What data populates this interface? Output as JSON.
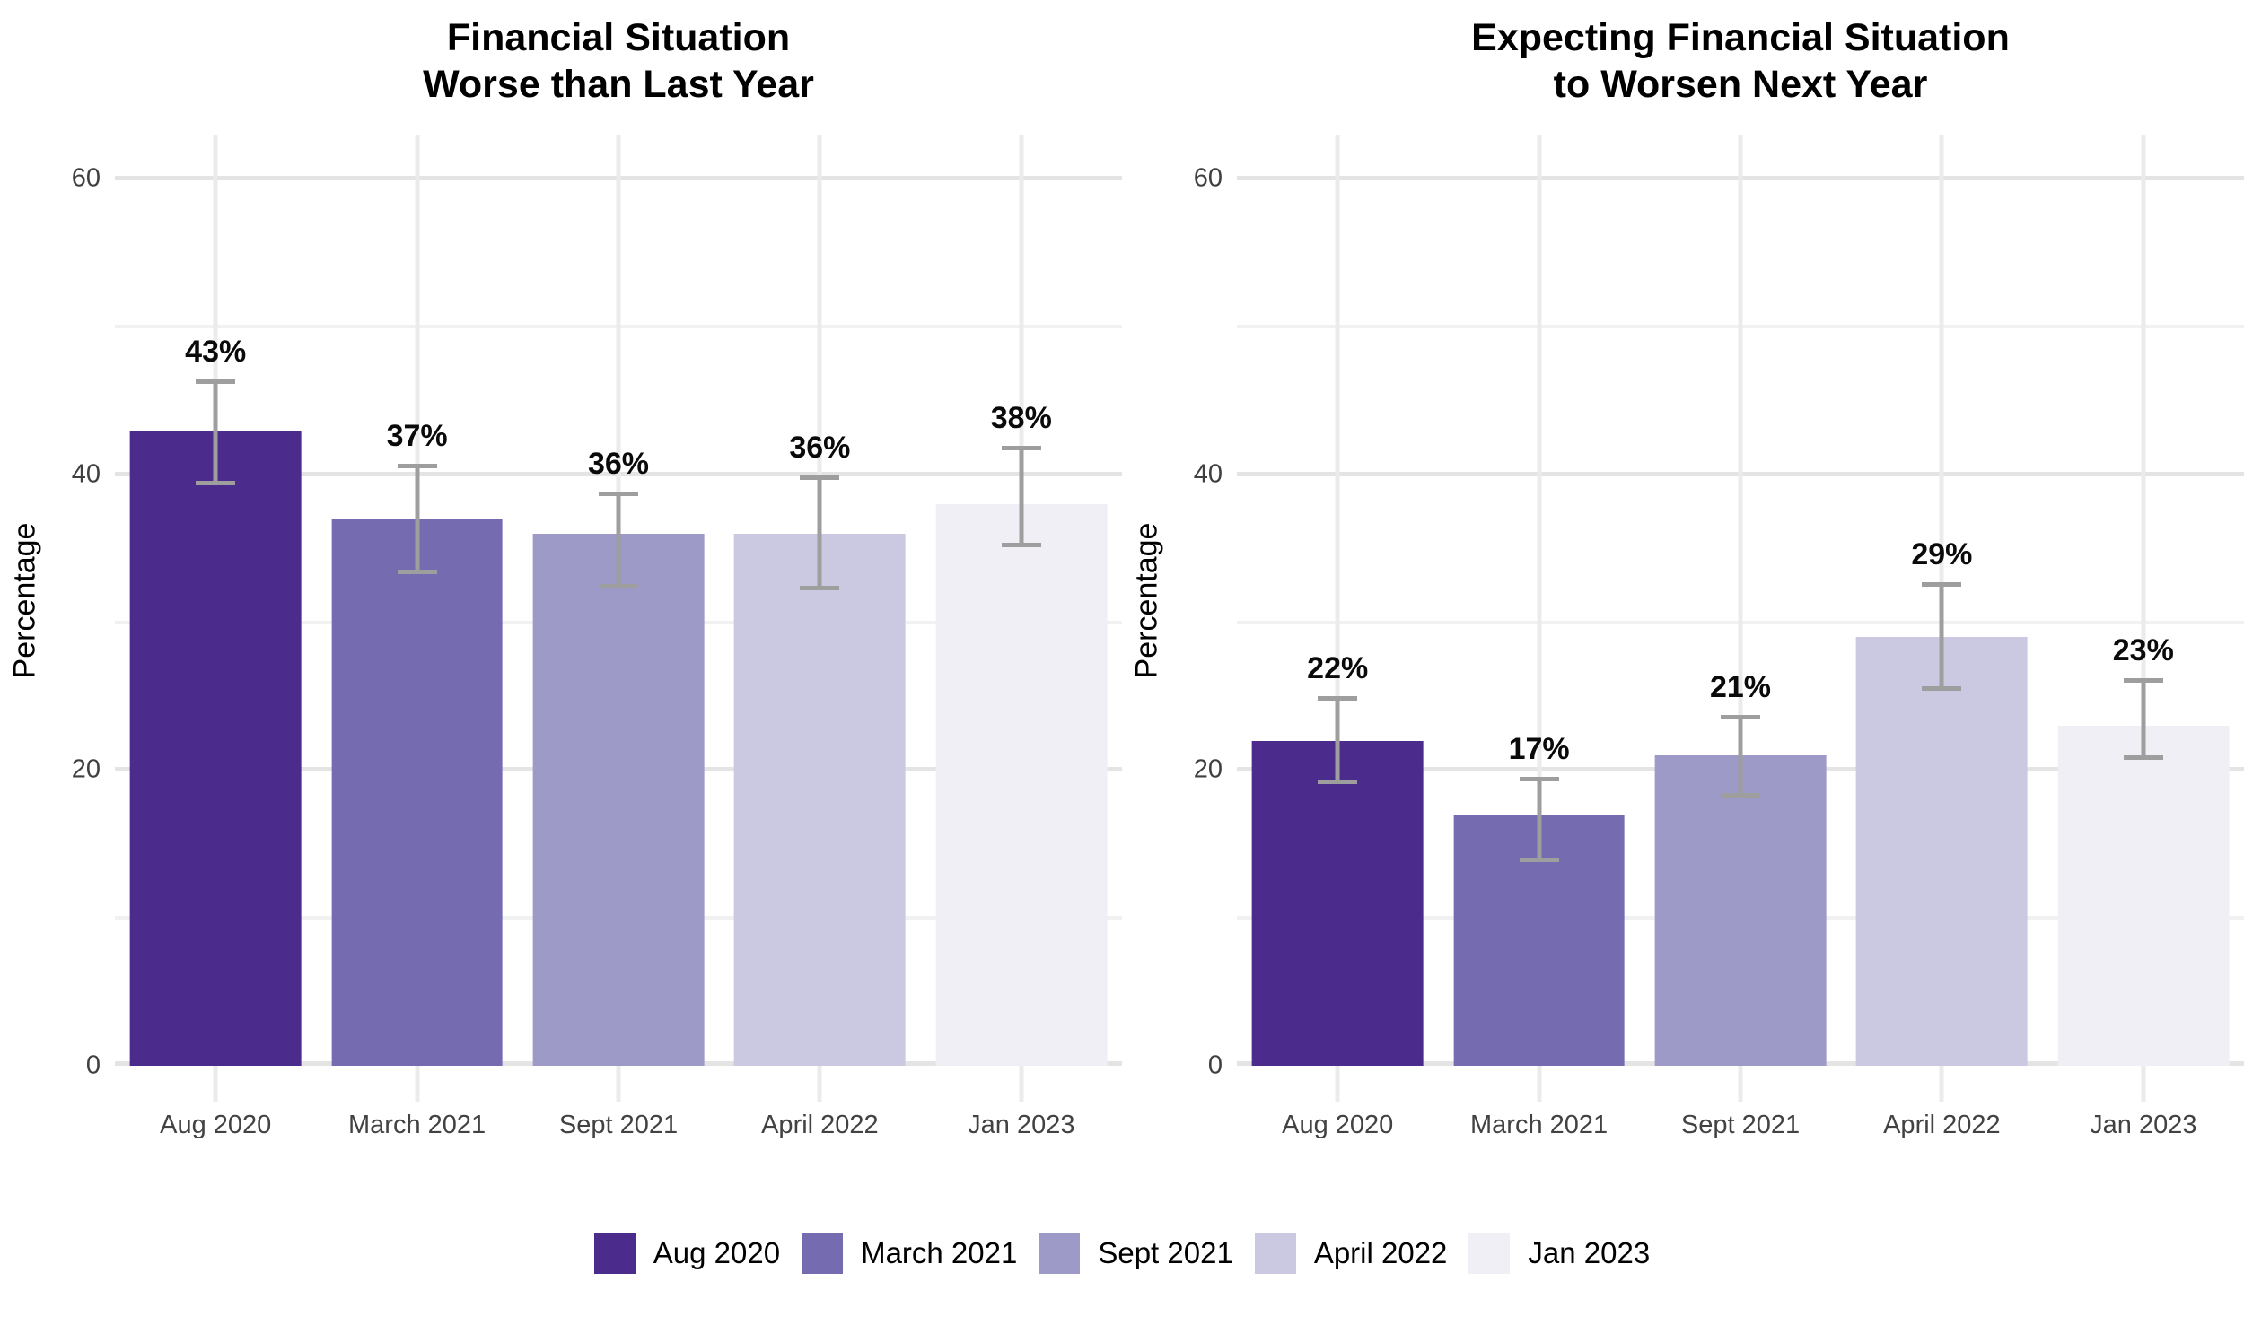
{
  "chart_data": [
    {
      "type": "bar",
      "title_lines": [
        "Financial Situation",
        "Worse than Last Year"
      ],
      "ylabel": "Percentage",
      "categories": [
        "Aug 2020",
        "March 2021",
        "Sept 2021",
        "April 2022",
        "Jan 2023"
      ],
      "values": [
        43,
        37,
        36,
        36,
        38
      ],
      "value_labels": [
        "43%",
        "37%",
        "36%",
        "36%",
        "38%"
      ],
      "error_low": [
        39.4,
        33.4,
        32.4,
        32.3,
        35.2
      ],
      "error_high": [
        46.3,
        40.6,
        38.7,
        39.8,
        41.8
      ],
      "bar_colors": [
        "#4B2C8C",
        "#756BB1",
        "#9E9AC8",
        "#CBC9E2",
        "#F0EFF6"
      ],
      "ylim": [
        0,
        63
      ],
      "yticks": [
        0,
        20,
        40,
        60
      ],
      "yticks_minor": [
        10,
        30,
        50
      ],
      "grid": true,
      "legend_position": "bottom-shared"
    },
    {
      "type": "bar",
      "title_lines": [
        "Expecting Financial Situation",
        "to Worsen Next Year"
      ],
      "ylabel": "Percentage",
      "categories": [
        "Aug 2020",
        "March 2021",
        "Sept 2021",
        "April 2022",
        "Jan 2023"
      ],
      "values": [
        22,
        17,
        21,
        29,
        23
      ],
      "value_labels": [
        "22%",
        "17%",
        "21%",
        "29%",
        "23%"
      ],
      "error_low": [
        19.2,
        13.9,
        18.3,
        25.5,
        20.8
      ],
      "error_high": [
        24.9,
        19.4,
        23.6,
        32.6,
        26.1
      ],
      "bar_colors": [
        "#4B2C8C",
        "#756BB1",
        "#9E9AC8",
        "#CBC9E2",
        "#F0EFF6"
      ],
      "ylim": [
        0,
        63
      ],
      "yticks": [
        0,
        20,
        40,
        60
      ],
      "yticks_minor": [
        10,
        30,
        50
      ],
      "grid": true,
      "legend_position": "bottom-shared"
    }
  ],
  "legend": {
    "items": [
      {
        "label": "Aug 2020",
        "color": "#4B2C8C"
      },
      {
        "label": "March 2021",
        "color": "#756BB1"
      },
      {
        "label": "Sept 2021",
        "color": "#9E9AC8"
      },
      {
        "label": "April 2022",
        "color": "#CBC9E2"
      },
      {
        "label": "Jan 2023",
        "color": "#F0EFF6"
      }
    ]
  },
  "style": {
    "grid_major_color": "#e4e4e4",
    "grid_minor_color": "#f1f1f1",
    "error_bar_color": "#9e9e9e",
    "axis_text_color": "#3f3f3f"
  }
}
